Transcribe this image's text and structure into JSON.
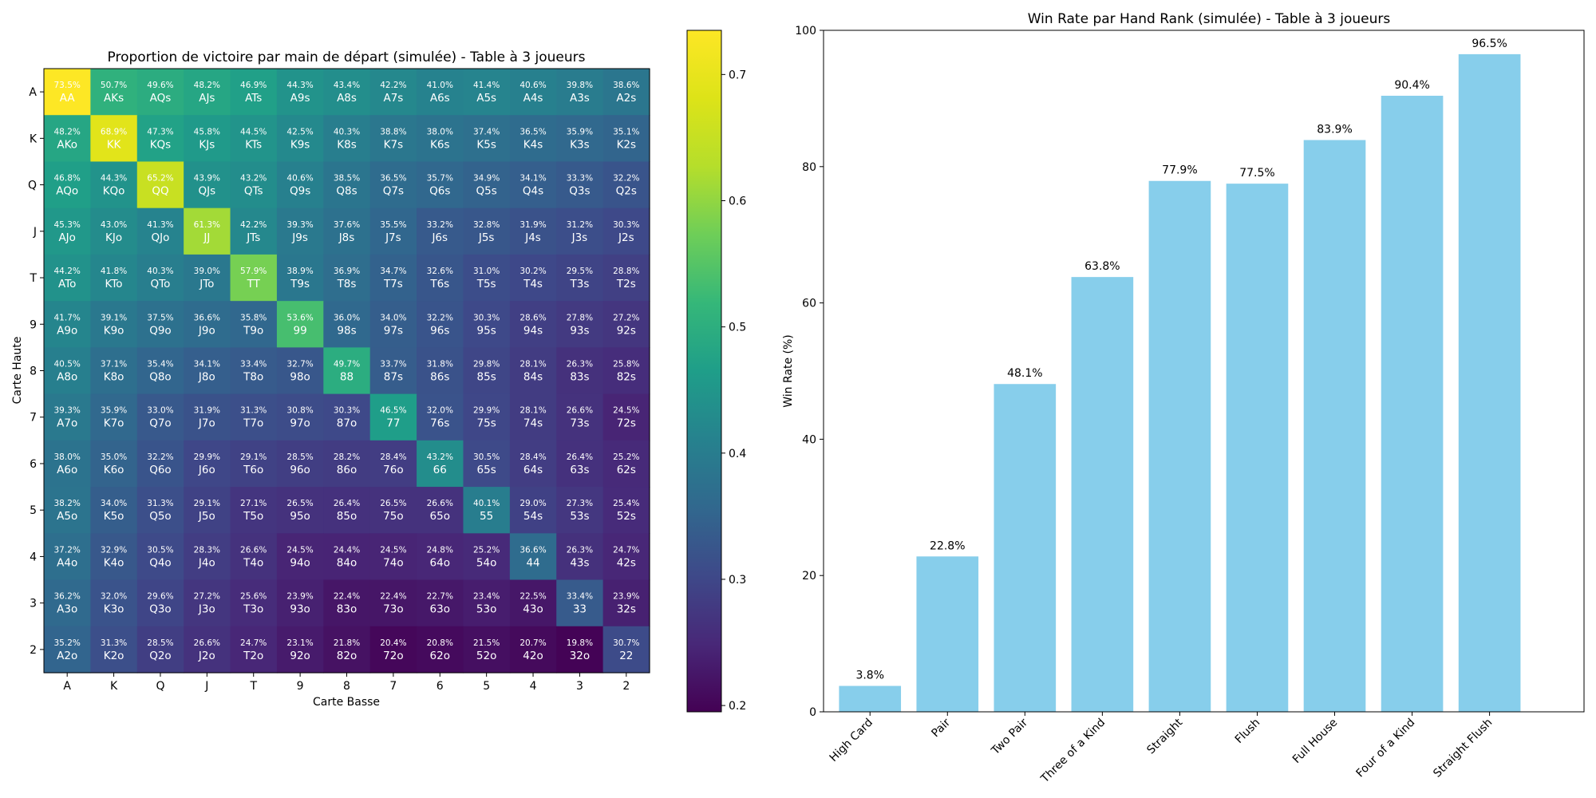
{
  "chart_data": [
    {
      "type": "heatmap",
      "title": "Proportion de victoire par main de départ (simulée) - Table à 3 joueurs",
      "xlabel": "Carte Basse",
      "ylabel": "Carte Haute",
      "x_ticks": [
        "A",
        "K",
        "Q",
        "J",
        "T",
        "9",
        "8",
        "7",
        "6",
        "5",
        "4",
        "3",
        "2"
      ],
      "y_ticks": [
        "A",
        "K",
        "Q",
        "J",
        "T",
        "9",
        "8",
        "7",
        "6",
        "5",
        "4",
        "3",
        "2"
      ],
      "colormap": "viridis",
      "colorbar": {
        "range": [
          0.195,
          0.735
        ],
        "ticks": [
          0.2,
          0.3,
          0.4,
          0.5,
          0.6,
          0.7
        ],
        "tick_labels": [
          "0.2",
          "0.3",
          "0.4",
          "0.5",
          "0.6",
          "0.7"
        ]
      },
      "hands": [
        [
          "AA",
          "AKs",
          "AQs",
          "AJs",
          "ATs",
          "A9s",
          "A8s",
          "A7s",
          "A6s",
          "A5s",
          "A4s",
          "A3s",
          "A2s"
        ],
        [
          "AKo",
          "KK",
          "KQs",
          "KJs",
          "KTs",
          "K9s",
          "K8s",
          "K7s",
          "K6s",
          "K5s",
          "K4s",
          "K3s",
          "K2s"
        ],
        [
          "AQo",
          "KQo",
          "QQ",
          "QJs",
          "QTs",
          "Q9s",
          "Q8s",
          "Q7s",
          "Q6s",
          "Q5s",
          "Q4s",
          "Q3s",
          "Q2s"
        ],
        [
          "AJo",
          "KJo",
          "QJo",
          "JJ",
          "JTs",
          "J9s",
          "J8s",
          "J7s",
          "J6s",
          "J5s",
          "J4s",
          "J3s",
          "J2s"
        ],
        [
          "ATo",
          "KTo",
          "QTo",
          "JTo",
          "TT",
          "T9s",
          "T8s",
          "T7s",
          "T6s",
          "T5s",
          "T4s",
          "T3s",
          "T2s"
        ],
        [
          "A9o",
          "K9o",
          "Q9o",
          "J9o",
          "T9o",
          "99",
          "98s",
          "97s",
          "96s",
          "95s",
          "94s",
          "93s",
          "92s"
        ],
        [
          "A8o",
          "K8o",
          "Q8o",
          "J8o",
          "T8o",
          "98o",
          "88",
          "87s",
          "86s",
          "85s",
          "84s",
          "83s",
          "82s"
        ],
        [
          "A7o",
          "K7o",
          "Q7o",
          "J7o",
          "T7o",
          "97o",
          "87o",
          "77",
          "76s",
          "75s",
          "74s",
          "73s",
          "72s"
        ],
        [
          "A6o",
          "K6o",
          "Q6o",
          "J6o",
          "T6o",
          "96o",
          "86o",
          "76o",
          "66",
          "65s",
          "64s",
          "63s",
          "62s"
        ],
        [
          "A5o",
          "K5o",
          "Q5o",
          "J5o",
          "T5o",
          "95o",
          "85o",
          "75o",
          "65o",
          "55",
          "54s",
          "53s",
          "52s"
        ],
        [
          "A4o",
          "K4o",
          "Q4o",
          "J4o",
          "T4o",
          "94o",
          "84o",
          "74o",
          "64o",
          "54o",
          "44",
          "43s",
          "42s"
        ],
        [
          "A3o",
          "K3o",
          "Q3o",
          "J3o",
          "T3o",
          "93o",
          "83o",
          "73o",
          "63o",
          "53o",
          "43o",
          "33",
          "32s"
        ],
        [
          "A2o",
          "K2o",
          "Q2o",
          "J2o",
          "T2o",
          "92o",
          "82o",
          "72o",
          "62o",
          "52o",
          "42o",
          "32o",
          "22"
        ]
      ],
      "values": [
        [
          "73.5%",
          "50.7%",
          "49.6%",
          "48.2%",
          "46.9%",
          "44.3%",
          "43.4%",
          "42.2%",
          "41.0%",
          "41.4%",
          "40.6%",
          "39.8%",
          "38.6%"
        ],
        [
          "48.2%",
          "68.9%",
          "47.3%",
          "45.8%",
          "44.5%",
          "42.5%",
          "40.3%",
          "38.8%",
          "38.0%",
          "37.4%",
          "36.5%",
          "35.9%",
          "35.1%"
        ],
        [
          "46.8%",
          "44.3%",
          "65.2%",
          "43.9%",
          "43.2%",
          "40.6%",
          "38.5%",
          "36.5%",
          "35.7%",
          "34.9%",
          "34.1%",
          "33.3%",
          "32.2%"
        ],
        [
          "45.3%",
          "43.0%",
          "41.3%",
          "61.3%",
          "42.2%",
          "39.3%",
          "37.6%",
          "35.5%",
          "33.2%",
          "32.8%",
          "31.9%",
          "31.2%",
          "30.3%"
        ],
        [
          "44.2%",
          "41.8%",
          "40.3%",
          "39.0%",
          "57.9%",
          "38.9%",
          "36.9%",
          "34.7%",
          "32.6%",
          "31.0%",
          "30.2%",
          "29.5%",
          "28.8%"
        ],
        [
          "41.7%",
          "39.1%",
          "37.5%",
          "36.6%",
          "35.8%",
          "53.6%",
          "36.0%",
          "34.0%",
          "32.2%",
          "30.3%",
          "28.6%",
          "27.8%",
          "27.2%"
        ],
        [
          "40.5%",
          "37.1%",
          "35.4%",
          "34.1%",
          "33.4%",
          "32.7%",
          "49.7%",
          "33.7%",
          "31.8%",
          "29.8%",
          "28.1%",
          "26.3%",
          "25.8%"
        ],
        [
          "39.3%",
          "35.9%",
          "33.0%",
          "31.9%",
          "31.3%",
          "30.8%",
          "30.3%",
          "46.5%",
          "32.0%",
          "29.9%",
          "28.1%",
          "26.6%",
          "24.5%"
        ],
        [
          "38.0%",
          "35.0%",
          "32.2%",
          "29.9%",
          "29.1%",
          "28.5%",
          "28.2%",
          "28.4%",
          "43.2%",
          "30.5%",
          "28.4%",
          "26.4%",
          "25.2%"
        ],
        [
          "38.2%",
          "34.0%",
          "31.3%",
          "29.1%",
          "27.1%",
          "26.5%",
          "26.4%",
          "26.5%",
          "26.6%",
          "40.1%",
          "29.0%",
          "27.3%",
          "25.4%"
        ],
        [
          "37.2%",
          "32.9%",
          "30.5%",
          "28.3%",
          "26.6%",
          "24.5%",
          "24.4%",
          "24.5%",
          "24.8%",
          "25.2%",
          "36.6%",
          "26.3%",
          "24.7%"
        ],
        [
          "36.2%",
          "32.0%",
          "29.6%",
          "27.2%",
          "25.6%",
          "23.9%",
          "22.4%",
          "22.4%",
          "22.7%",
          "23.4%",
          "22.5%",
          "33.4%",
          "23.9%"
        ],
        [
          "35.2%",
          "31.3%",
          "28.5%",
          "26.6%",
          "24.7%",
          "23.1%",
          "21.8%",
          "20.4%",
          "20.8%",
          "21.5%",
          "20.7%",
          "19.8%",
          "30.7%"
        ]
      ]
    },
    {
      "type": "bar",
      "title": "Win Rate par Hand Rank (simulée) - Table à 3 joueurs",
      "xlabel": "",
      "ylabel": "Win Rate (%)",
      "ylim": [
        0,
        100
      ],
      "y_ticks": [
        0,
        20,
        40,
        60,
        80,
        100
      ],
      "y_tick_labels": [
        "0",
        "20",
        "40",
        "60",
        "80",
        "100"
      ],
      "categories": [
        "High Card",
        "Pair",
        "Two Pair",
        "Three of a Kind",
        "Straight",
        "Flush",
        "Full House",
        "Four of a Kind",
        "Straight Flush"
      ],
      "values": [
        3.8,
        22.8,
        48.1,
        63.8,
        77.9,
        77.5,
        83.9,
        90.4,
        96.5
      ],
      "data_labels": [
        "3.8%",
        "22.8%",
        "48.1%",
        "63.8%",
        "77.9%",
        "77.5%",
        "83.9%",
        "90.4%",
        "96.5%"
      ],
      "bar_color": "#87ceeb"
    }
  ]
}
